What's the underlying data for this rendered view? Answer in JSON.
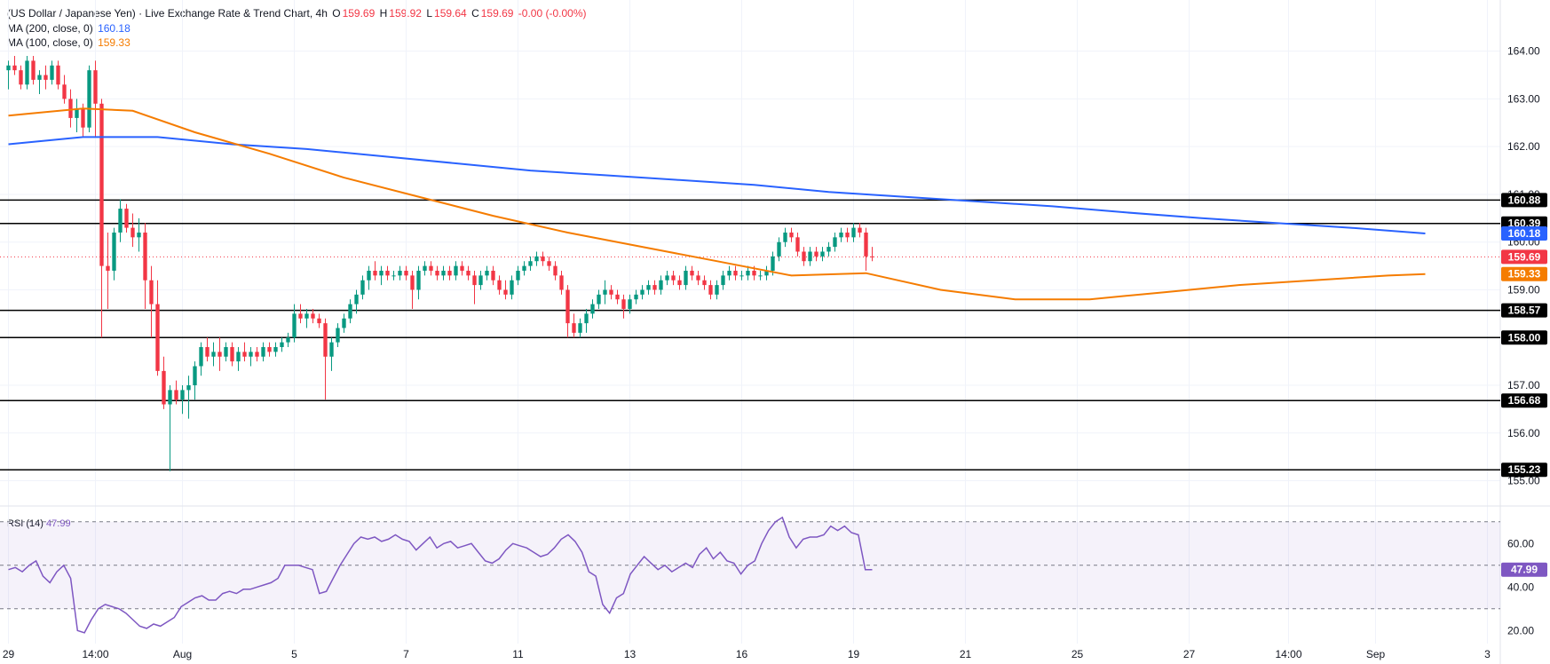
{
  "legend": {
    "symbol": "(US Dollar / Japanese Yen) · Live Exchange Rate & Trend Chart, 4h",
    "o_key": "O",
    "o": "159.69",
    "h_key": "H",
    "h": "159.92",
    "l_key": "L",
    "l": "159.64",
    "c_key": "C",
    "c": "159.69",
    "change": "-0.00 (-0.00%)",
    "ma200_label": "MA (200, close, 0)",
    "ma200_value": "160.18",
    "ma100_label": "MA (100, close, 0)",
    "ma100_value": "159.33",
    "rsi_label": "RSI (14)",
    "rsi_value": "47.99"
  },
  "colors": {
    "up": "#089981",
    "down": "#f23645",
    "ma200": "#2962ff",
    "ma100": "#f57c00",
    "rsi": "#7e57c2",
    "level": "#000000",
    "grid": "#f0f3fa",
    "text": "#131722"
  },
  "chart_data": [
    {
      "type": "candlestick",
      "title": "(US Dollar / Japanese Yen) · Live Exchange Rate & Trend Chart, 4h",
      "timeframe": "4h",
      "ylim": [
        154.75,
        164.7
      ],
      "y_ticks": [
        "155.00",
        "156.00",
        "157.00",
        "158.00",
        "159.00",
        "160.00",
        "161.00",
        "162.00",
        "163.00",
        "164.00"
      ],
      "x_ticks": [
        "29",
        "14:00",
        "Aug",
        "5",
        "7",
        "11",
        "13",
        "16",
        "19",
        "21",
        "25",
        "27",
        "14:00",
        "Sep",
        "3"
      ],
      "x_tick_index": [
        0,
        14,
        28,
        46,
        64,
        82,
        100,
        118,
        136,
        154,
        172,
        190,
        206,
        220,
        238
      ],
      "horizontal_levels": [
        {
          "label": "160.88",
          "value": 160.88
        },
        {
          "label": "160.39",
          "value": 160.39
        },
        {
          "label": "158.57",
          "value": 158.57
        },
        {
          "label": "158.00",
          "value": 158.0
        },
        {
          "label": "156.68",
          "value": 156.68
        },
        {
          "label": "155.23",
          "value": 155.23
        }
      ],
      "current_price": {
        "label": "159.69",
        "value": 159.69
      },
      "series": [
        {
          "name": "MA (200, close, 0)",
          "last_label": "160.18",
          "last": 160.18
        },
        {
          "name": "MA (100, close, 0)",
          "last_label": "159.33",
          "last": 159.33
        }
      ],
      "ma200": [
        [
          0,
          162.05
        ],
        [
          12,
          162.2
        ],
        [
          24,
          162.2
        ],
        [
          36,
          162.05
        ],
        [
          48,
          161.95
        ],
        [
          60,
          161.8
        ],
        [
          72,
          161.65
        ],
        [
          84,
          161.5
        ],
        [
          96,
          161.4
        ],
        [
          108,
          161.3
        ],
        [
          120,
          161.2
        ],
        [
          132,
          161.05
        ],
        [
          144,
          160.95
        ],
        [
          156,
          160.85
        ],
        [
          168,
          160.75
        ],
        [
          180,
          160.62
        ],
        [
          192,
          160.5
        ],
        [
          204,
          160.4
        ],
        [
          216,
          160.3
        ],
        [
          228,
          160.18
        ]
      ],
      "ma100": [
        [
          0,
          162.65
        ],
        [
          12,
          162.8
        ],
        [
          20,
          162.75
        ],
        [
          30,
          162.3
        ],
        [
          42,
          161.85
        ],
        [
          54,
          161.35
        ],
        [
          66,
          160.95
        ],
        [
          78,
          160.55
        ],
        [
          90,
          160.2
        ],
        [
          102,
          159.9
        ],
        [
          114,
          159.6
        ],
        [
          126,
          159.3
        ],
        [
          138,
          159.35
        ],
        [
          150,
          159.0
        ],
        [
          162,
          158.8
        ],
        [
          174,
          158.8
        ],
        [
          186,
          158.95
        ],
        [
          198,
          159.1
        ],
        [
          210,
          159.2
        ],
        [
          222,
          159.3
        ],
        [
          228,
          159.33
        ]
      ],
      "candles": [
        [
          163.6,
          163.8,
          163.2,
          163.7
        ],
        [
          163.7,
          163.9,
          163.5,
          163.6
        ],
        [
          163.6,
          163.7,
          163.2,
          163.3
        ],
        [
          163.3,
          163.9,
          163.2,
          163.8
        ],
        [
          163.8,
          163.9,
          163.3,
          163.4
        ],
        [
          163.4,
          163.6,
          163.1,
          163.5
        ],
        [
          163.5,
          163.7,
          163.2,
          163.4
        ],
        [
          163.4,
          163.8,
          163.3,
          163.7
        ],
        [
          163.7,
          163.8,
          163.2,
          163.3
        ],
        [
          163.3,
          163.5,
          162.9,
          163.0
        ],
        [
          163.0,
          163.2,
          162.4,
          162.6
        ],
        [
          162.6,
          163.0,
          162.3,
          162.8
        ],
        [
          162.8,
          162.9,
          162.2,
          162.4
        ],
        [
          162.4,
          163.7,
          162.3,
          163.6
        ],
        [
          163.6,
          163.8,
          162.2,
          162.9
        ],
        [
          162.9,
          163.0,
          158.0,
          159.5
        ],
        [
          159.5,
          160.2,
          158.6,
          159.4
        ],
        [
          159.4,
          160.3,
          159.2,
          160.2
        ],
        [
          160.2,
          160.9,
          160.0,
          160.7
        ],
        [
          160.7,
          160.8,
          160.2,
          160.3
        ],
        [
          160.3,
          160.6,
          159.9,
          160.1
        ],
        [
          160.1,
          160.5,
          159.8,
          160.2
        ],
        [
          160.2,
          160.4,
          158.6,
          159.2
        ],
        [
          159.2,
          159.5,
          158.0,
          158.7
        ],
        [
          158.7,
          159.2,
          157.2,
          157.3
        ],
        [
          157.3,
          157.6,
          156.5,
          156.6
        ],
        [
          156.6,
          157.0,
          155.2,
          156.9
        ],
        [
          156.9,
          157.1,
          156.6,
          156.7
        ],
        [
          156.7,
          157.0,
          156.4,
          156.9
        ],
        [
          156.9,
          157.2,
          156.3,
          157.0
        ],
        [
          157.0,
          157.5,
          156.7,
          157.4
        ],
        [
          157.4,
          157.9,
          157.2,
          157.8
        ],
        [
          157.8,
          158.0,
          157.5,
          157.6
        ],
        [
          157.6,
          157.9,
          157.4,
          157.7
        ],
        [
          157.7,
          158.0,
          157.3,
          157.6
        ],
        [
          157.6,
          157.9,
          157.5,
          157.8
        ],
        [
          157.8,
          157.9,
          157.4,
          157.5
        ],
        [
          157.5,
          157.8,
          157.3,
          157.7
        ],
        [
          157.7,
          157.9,
          157.5,
          157.6
        ],
        [
          157.6,
          157.8,
          157.4,
          157.7
        ],
        [
          157.7,
          157.8,
          157.5,
          157.6
        ],
        [
          157.6,
          157.9,
          157.5,
          157.8
        ],
        [
          157.8,
          157.9,
          157.6,
          157.7
        ],
        [
          157.7,
          157.9,
          157.6,
          157.8
        ],
        [
          157.8,
          158.0,
          157.7,
          157.9
        ],
        [
          157.9,
          158.1,
          157.8,
          158.0
        ],
        [
          158.0,
          158.7,
          157.9,
          158.5
        ],
        [
          158.5,
          158.7,
          158.3,
          158.4
        ],
        [
          158.4,
          158.6,
          158.2,
          158.5
        ],
        [
          158.5,
          158.6,
          158.3,
          158.4
        ],
        [
          158.4,
          158.5,
          158.2,
          158.3
        ],
        [
          158.3,
          158.4,
          156.7,
          157.6
        ],
        [
          157.6,
          158.0,
          157.3,
          157.9
        ],
        [
          157.9,
          158.3,
          157.8,
          158.2
        ],
        [
          158.2,
          158.5,
          158.1,
          158.4
        ],
        [
          158.4,
          158.8,
          158.3,
          158.7
        ],
        [
          158.7,
          159.0,
          158.5,
          158.9
        ],
        [
          158.9,
          159.3,
          158.8,
          159.2
        ],
        [
          159.2,
          159.5,
          159.0,
          159.4
        ],
        [
          159.4,
          159.6,
          159.2,
          159.3
        ],
        [
          159.3,
          159.5,
          159.1,
          159.4
        ],
        [
          159.4,
          159.5,
          159.2,
          159.3
        ],
        [
          159.3,
          159.4,
          159.2,
          159.3
        ],
        [
          159.3,
          159.5,
          159.2,
          159.4
        ],
        [
          159.4,
          159.5,
          159.2,
          159.3
        ],
        [
          159.3,
          159.4,
          158.6,
          159.0
        ],
        [
          159.0,
          159.5,
          158.8,
          159.4
        ],
        [
          159.4,
          159.6,
          159.3,
          159.5
        ],
        [
          159.5,
          159.6,
          159.3,
          159.4
        ],
        [
          159.4,
          159.5,
          159.2,
          159.3
        ],
        [
          159.3,
          159.5,
          159.2,
          159.4
        ],
        [
          159.4,
          159.5,
          159.2,
          159.3
        ],
        [
          159.3,
          159.6,
          159.2,
          159.5
        ],
        [
          159.5,
          159.6,
          159.3,
          159.4
        ],
        [
          159.4,
          159.5,
          159.2,
          159.3
        ],
        [
          159.3,
          159.4,
          158.7,
          159.1
        ],
        [
          159.1,
          159.4,
          159.0,
          159.3
        ],
        [
          159.3,
          159.5,
          159.2,
          159.4
        ],
        [
          159.4,
          159.5,
          159.1,
          159.2
        ],
        [
          159.2,
          159.3,
          158.9,
          159.0
        ],
        [
          159.0,
          159.2,
          158.8,
          158.9
        ],
        [
          158.9,
          159.3,
          158.8,
          159.2
        ],
        [
          159.2,
          159.5,
          159.1,
          159.4
        ],
        [
          159.4,
          159.6,
          159.3,
          159.5
        ],
        [
          159.5,
          159.7,
          159.4,
          159.6
        ],
        [
          159.6,
          159.8,
          159.5,
          159.7
        ],
        [
          159.7,
          159.8,
          159.5,
          159.6
        ],
        [
          159.6,
          159.7,
          159.4,
          159.5
        ],
        [
          159.5,
          159.6,
          159.2,
          159.3
        ],
        [
          159.3,
          159.4,
          158.9,
          159.0
        ],
        [
          159.0,
          159.1,
          158.0,
          158.3
        ],
        [
          158.3,
          158.5,
          158.0,
          158.1
        ],
        [
          158.1,
          158.4,
          158.0,
          158.3
        ],
        [
          158.3,
          158.6,
          158.1,
          158.5
        ],
        [
          158.5,
          158.8,
          158.4,
          158.7
        ],
        [
          158.7,
          159.0,
          158.6,
          158.9
        ],
        [
          158.9,
          159.2,
          158.7,
          159.0
        ],
        [
          159.0,
          159.1,
          158.8,
          158.9
        ],
        [
          158.9,
          159.0,
          158.7,
          158.8
        ],
        [
          158.8,
          158.9,
          158.4,
          158.6
        ],
        [
          158.6,
          158.9,
          158.5,
          158.8
        ],
        [
          158.8,
          159.0,
          158.7,
          158.9
        ],
        [
          158.9,
          159.1,
          158.8,
          159.0
        ],
        [
          159.0,
          159.2,
          158.9,
          159.1
        ],
        [
          159.1,
          159.2,
          158.9,
          159.0
        ],
        [
          159.0,
          159.3,
          158.9,
          159.2
        ],
        [
          159.2,
          159.4,
          159.1,
          159.3
        ],
        [
          159.3,
          159.4,
          159.1,
          159.2
        ],
        [
          159.2,
          159.3,
          159.0,
          159.1
        ],
        [
          159.1,
          159.5,
          159.0,
          159.4
        ],
        [
          159.4,
          159.5,
          159.2,
          159.3
        ],
        [
          159.3,
          159.4,
          159.1,
          159.2
        ],
        [
          159.2,
          159.3,
          159.0,
          159.1
        ],
        [
          159.1,
          159.2,
          158.8,
          158.9
        ],
        [
          158.9,
          159.2,
          158.8,
          159.1
        ],
        [
          159.1,
          159.4,
          159.0,
          159.3
        ],
        [
          159.3,
          159.5,
          159.2,
          159.4
        ],
        [
          159.4,
          159.5,
          159.2,
          159.3
        ],
        [
          159.3,
          159.4,
          159.2,
          159.3
        ],
        [
          159.3,
          159.5,
          159.2,
          159.4
        ],
        [
          159.4,
          159.5,
          159.2,
          159.3
        ],
        [
          159.3,
          159.4,
          159.2,
          159.3
        ],
        [
          159.3,
          159.5,
          159.2,
          159.4
        ],
        [
          159.4,
          159.8,
          159.3,
          159.7
        ],
        [
          159.7,
          160.1,
          159.6,
          160.0
        ],
        [
          160.0,
          160.3,
          159.9,
          160.2
        ],
        [
          160.2,
          160.3,
          160.0,
          160.1
        ],
        [
          160.1,
          160.2,
          159.7,
          159.8
        ],
        [
          159.8,
          159.9,
          159.5,
          159.6
        ],
        [
          159.6,
          159.9,
          159.5,
          159.8
        ],
        [
          159.8,
          159.9,
          159.6,
          159.7
        ],
        [
          159.7,
          159.9,
          159.6,
          159.8
        ],
        [
          159.8,
          160.0,
          159.7,
          159.9
        ],
        [
          159.9,
          160.2,
          159.8,
          160.1
        ],
        [
          160.1,
          160.3,
          160.0,
          160.2
        ],
        [
          160.2,
          160.3,
          160.0,
          160.1
        ],
        [
          160.1,
          160.4,
          160.0,
          160.3
        ],
        [
          160.3,
          160.4,
          160.1,
          160.2
        ],
        [
          160.2,
          160.3,
          159.4,
          159.7
        ],
        [
          159.7,
          159.9,
          159.6,
          159.69
        ]
      ],
      "x_pixel_hint": "candles spread across plot width"
    },
    {
      "type": "line",
      "title": "RSI (14)",
      "ylim": [
        14,
        74
      ],
      "y_ticks": [
        "20.00",
        "40.00",
        "60.00"
      ],
      "bands": [
        30,
        50,
        70
      ],
      "current": {
        "label": "47.99",
        "value": 47.99
      },
      "values": [
        48,
        49,
        47,
        50,
        52,
        45,
        42,
        47,
        50,
        44,
        20,
        19,
        25,
        30,
        32,
        31,
        30,
        28,
        25,
        22,
        21,
        23,
        22,
        24,
        26,
        31,
        33,
        35,
        36,
        34,
        34,
        37,
        38,
        37,
        39,
        39,
        40,
        41,
        42,
        44,
        50,
        50,
        50,
        49,
        48,
        37,
        38,
        44,
        50,
        55,
        60,
        63,
        62,
        63,
        61,
        62,
        64,
        62,
        61,
        57,
        60,
        63,
        58,
        60,
        61,
        58,
        59,
        60,
        56,
        52,
        51,
        53,
        57,
        60,
        59,
        58,
        56,
        54,
        55,
        58,
        62,
        64,
        61,
        56,
        47,
        45,
        32,
        28,
        35,
        37,
        46,
        50,
        54,
        51,
        48,
        50,
        47,
        49,
        51,
        49,
        55,
        58,
        53,
        56,
        52,
        51,
        46,
        50,
        52,
        60,
        66,
        70,
        72,
        63,
        58,
        62,
        63,
        63,
        64,
        68,
        66,
        68,
        65,
        64,
        48,
        48
      ]
    }
  ]
}
